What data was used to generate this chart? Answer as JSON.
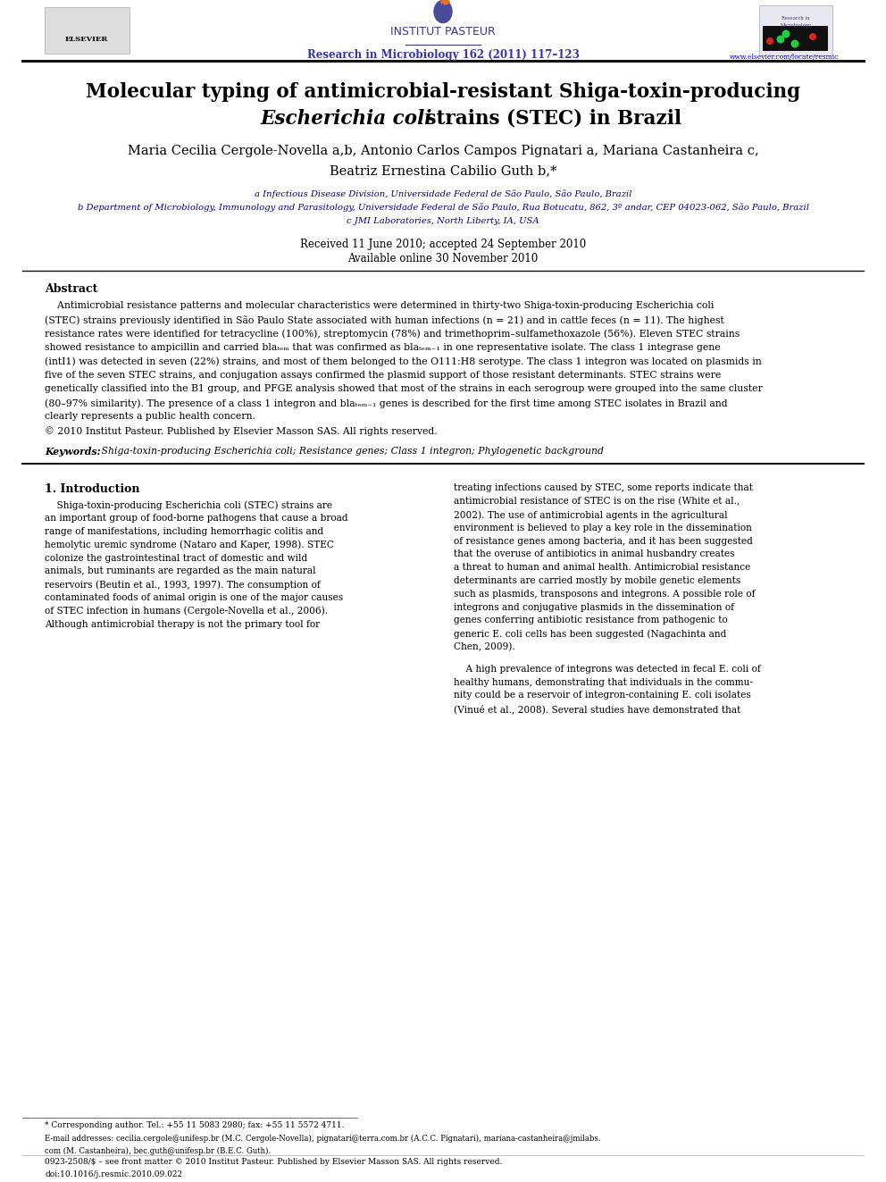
{
  "background_color": "#ffffff",
  "page_width": 9.92,
  "page_height": 13.23,
  "header_journal": "Research in Microbiology 162 (2011) 117–123",
  "header_url": "www.elsevier.com/locate/resmic",
  "institut_pasteur": "INSTITUT PASTEUR",
  "title_line1": "Molecular typing of antimicrobial-resistant Shiga-toxin-producing",
  "title_line2_normal": " strains (STEC) in Brazil",
  "title_line2_italic": "Escherichia coli",
  "authors": "Maria Cecilia Cergole-Novella a,b, Antonio Carlos Campos Pignatari a, Mariana Castanheira c,",
  "authors2": "Beatriz Ernestina Cabilio Guth b,*",
  "affil_a": "a Infectious Disease Division, Universidade Federal de São Paulo, São Paulo, Brazil",
  "affil_b": "b Department of Microbiology, Immunology and Parasitology, Universidade Federal de São Paulo, Rua Botucatu, 862, 3º andar, CEP 04023-062, São Paulo, Brazil",
  "affil_c": "c JMI Laboratories, North Liberty, IA, USA",
  "received": "Received 11 June 2010; accepted 24 September 2010",
  "available": "Available online 30 November 2010",
  "abstract_title": "Abstract",
  "copyright": "© 2010 Institut Pasteur. Published by Elsevier Masson SAS. All rights reserved.",
  "keywords_label": "Keywords:",
  "keywords_text": " Shiga-toxin-producing Escherichia coli; Resistance genes; Class 1 integron; Phylogenetic background",
  "section1_title": "1. Introduction",
  "footnote_star": "* Corresponding author. Tel.: +55 11 5083 2980; fax: +55 11 5572 4711.",
  "footnote_email": "E-mail addresses: cecilia.cergole@unifesp.br (M.C. Cergole-Novella), pignatari@terra.com.br (A.C.C. Pignatari), mariana-castanheira@jmilabs.",
  "footnote_email2": "com (M. Castanheira), bec.guth@unifesp.br (B.E.C. Guth).",
  "footer_issn": "0923-2508/$ – see front matter © 2010 Institut Pasteur. Published by Elsevier Masson SAS. All rights reserved.",
  "footer_doi": "doi:10.1016/j.resmic.2010.09.022",
  "header_color": "#3333aa",
  "link_color": "#0000cc",
  "title_color": "#000000",
  "text_color": "#000000"
}
